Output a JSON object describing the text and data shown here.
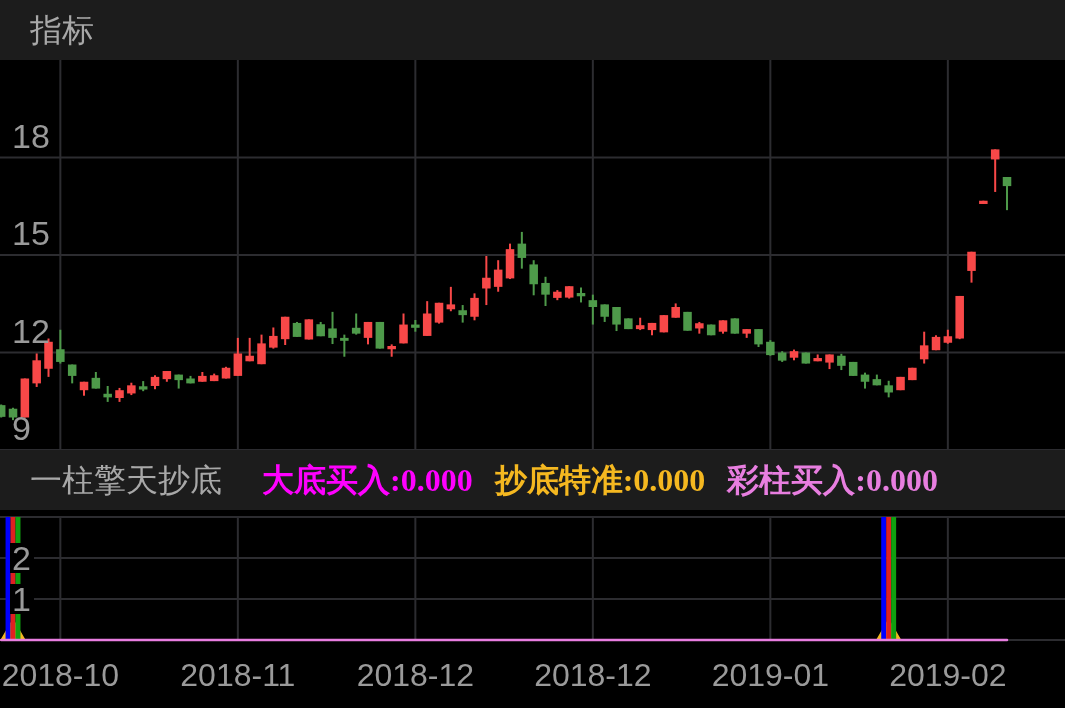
{
  "chart_data": [
    {
      "type": "candlestick",
      "title": "指标",
      "tick_labels": "y",
      "grid": true,
      "ylim": [
        9,
        21
      ],
      "yticks": [
        9,
        12,
        15,
        18
      ],
      "categories": [
        null,
        null,
        null,
        null,
        null,
        "2018-10",
        null,
        null,
        null,
        null,
        null,
        null,
        null,
        null,
        null,
        null,
        null,
        null,
        null,
        null,
        "2018-11",
        null,
        null,
        null,
        null,
        null,
        null,
        null,
        null,
        null,
        null,
        null,
        null,
        null,
        null,
        "2018-12",
        null,
        null,
        null,
        null,
        null,
        null,
        null,
        null,
        null,
        null,
        null,
        null,
        null,
        null,
        "2018-12",
        null,
        null,
        null,
        null,
        null,
        null,
        null,
        null,
        null,
        null,
        null,
        null,
        null,
        null,
        "2019-01",
        null,
        null,
        null,
        null,
        null,
        null,
        null,
        null,
        null,
        null,
        null,
        null,
        null,
        null,
        "2019-02",
        null,
        null,
        null,
        null,
        null
      ],
      "ohlc": [
        [
          10.38,
          10.4,
          10.0,
          10.02
        ],
        [
          10.27,
          10.3,
          9.92,
          10.0
        ],
        [
          10.0,
          11.2,
          10.0,
          11.2
        ],
        [
          11.05,
          11.97,
          10.94,
          11.76
        ],
        [
          11.5,
          12.43,
          11.25,
          12.33
        ],
        [
          12.1,
          12.7,
          11.66,
          11.71
        ],
        [
          11.63,
          11.63,
          11.05,
          11.28
        ],
        [
          10.84,
          11.1,
          10.67,
          11.1
        ],
        [
          11.22,
          11.4,
          10.89,
          10.89
        ],
        [
          10.73,
          10.97,
          10.48,
          10.62
        ],
        [
          10.6,
          10.91,
          10.48,
          10.84
        ],
        [
          10.74,
          11.07,
          10.69,
          10.99
        ],
        [
          10.96,
          11.12,
          10.81,
          10.86
        ],
        [
          10.97,
          11.3,
          10.87,
          11.25
        ],
        [
          11.18,
          11.43,
          11.1,
          11.43
        ],
        [
          11.32,
          11.32,
          10.89,
          11.15
        ],
        [
          11.2,
          11.28,
          11.05,
          11.05
        ],
        [
          11.1,
          11.4,
          11.1,
          11.28
        ],
        [
          11.12,
          11.35,
          11.12,
          11.3
        ],
        [
          11.2,
          11.56,
          11.2,
          11.53
        ],
        [
          11.28,
          12.45,
          11.28,
          11.97
        ],
        [
          11.73,
          12.45,
          11.73,
          11.9
        ],
        [
          11.64,
          12.55,
          11.64,
          12.28
        ],
        [
          12.15,
          12.77,
          12.12,
          12.51
        ],
        [
          12.41,
          13.1,
          12.23,
          13.1
        ],
        [
          12.91,
          12.94,
          12.48,
          12.48
        ],
        [
          12.4,
          13.02,
          12.4,
          13.02
        ],
        [
          12.87,
          12.94,
          12.5,
          12.5
        ],
        [
          12.74,
          13.25,
          12.26,
          12.45
        ],
        [
          12.45,
          12.55,
          11.87,
          12.36
        ],
        [
          12.76,
          13.2,
          12.55,
          12.58
        ],
        [
          12.45,
          12.94,
          12.25,
          12.94
        ],
        [
          12.94,
          12.94,
          12.12,
          12.12
        ],
        [
          12.1,
          12.25,
          11.87,
          12.2
        ],
        [
          12.28,
          13.2,
          12.28,
          12.86
        ],
        [
          12.86,
          13.0,
          12.64,
          12.76
        ],
        [
          12.51,
          13.58,
          12.51,
          13.2
        ],
        [
          12.92,
          13.53,
          12.89,
          13.53
        ],
        [
          13.33,
          14.02,
          13.27,
          13.48
        ],
        [
          13.3,
          13.46,
          12.92,
          13.15
        ],
        [
          13.1,
          13.82,
          12.99,
          13.68
        ],
        [
          13.97,
          14.97,
          13.46,
          14.3
        ],
        [
          14.02,
          14.84,
          13.87,
          14.55
        ],
        [
          14.28,
          15.35,
          14.26,
          15.18
        ],
        [
          15.35,
          15.71,
          14.58,
          14.91
        ],
        [
          14.71,
          14.84,
          13.76,
          14.1
        ],
        [
          14.14,
          14.33,
          13.43,
          13.78
        ],
        [
          13.68,
          13.92,
          13.61,
          13.87
        ],
        [
          13.69,
          14.04,
          13.66,
          14.04
        ],
        [
          13.83,
          14.0,
          13.54,
          13.73
        ],
        [
          13.61,
          13.78,
          12.86,
          13.4
        ],
        [
          13.48,
          13.48,
          12.94,
          13.1
        ],
        [
          13.4,
          13.4,
          12.66,
          12.86
        ],
        [
          13.05,
          13.05,
          12.72,
          12.72
        ],
        [
          12.72,
          13.07,
          12.69,
          12.84
        ],
        [
          12.69,
          12.91,
          12.53,
          12.91
        ],
        [
          12.62,
          13.15,
          12.62,
          13.15
        ],
        [
          13.07,
          13.51,
          13.07,
          13.4
        ],
        [
          13.25,
          13.25,
          12.67,
          12.67
        ],
        [
          12.74,
          12.94,
          12.58,
          12.9
        ],
        [
          12.86,
          12.86,
          12.53,
          12.53
        ],
        [
          12.64,
          12.99,
          12.58,
          12.99
        ],
        [
          13.05,
          13.05,
          12.58,
          12.58
        ],
        [
          12.58,
          12.72,
          12.45,
          12.72
        ],
        [
          12.72,
          12.72,
          12.17,
          12.25
        ],
        [
          12.33,
          12.38,
          11.9,
          11.92
        ],
        [
          12.0,
          12.04,
          11.71,
          11.75
        ],
        [
          11.84,
          12.09,
          11.76,
          12.04
        ],
        [
          12.0,
          12.0,
          11.66,
          11.66
        ],
        [
          11.73,
          11.94,
          11.73,
          11.83
        ],
        [
          11.69,
          11.94,
          11.49,
          11.94
        ],
        [
          11.9,
          11.96,
          11.46,
          11.59
        ],
        [
          11.71,
          11.71,
          11.28,
          11.28
        ],
        [
          11.32,
          11.38,
          10.89,
          11.1
        ],
        [
          11.18,
          11.32,
          10.99,
          10.99
        ],
        [
          10.99,
          11.13,
          10.62,
          10.77
        ],
        [
          10.84,
          11.25,
          10.84,
          11.25
        ],
        [
          11.15,
          11.53,
          11.15,
          11.53
        ],
        [
          11.79,
          12.64,
          11.66,
          12.22
        ],
        [
          12.07,
          12.53,
          12.07,
          12.48
        ],
        [
          12.3,
          12.7,
          12.27,
          12.5
        ],
        [
          12.43,
          13.74,
          12.41,
          13.74
        ],
        [
          14.51,
          15.1,
          14.15,
          15.1
        ],
        [
          16.57,
          16.67,
          16.57,
          16.67
        ],
        [
          17.94,
          18.25,
          16.94,
          18.25
        ],
        [
          17.4,
          17.4,
          16.38,
          17.12
        ]
      ],
      "colors": [
        "#4e9a4a",
        "#4e9a4a",
        "#f84848",
        "#f84848",
        "#f84848",
        "#4e9a4a",
        "#4e9a4a",
        "#f84848",
        "#4e9a4a",
        "#4e9a4a",
        "#f84848",
        "#f84848",
        "#4e9a4a",
        "#f84848",
        "#f84848",
        "#4e9a4a",
        "#4e9a4a",
        "#f84848",
        "#f84848",
        "#f84848",
        "#f84848",
        "#f84848",
        "#f84848",
        "#f84848",
        "#f84848",
        "#4e9a4a",
        "#f84848",
        "#4e9a4a",
        "#4e9a4a",
        "#4e9a4a",
        "#4e9a4a",
        "#f84848",
        "#4e9a4a",
        "#f84848",
        "#f84848",
        "#4e9a4a",
        "#f84848",
        "#f84848",
        "#f84848",
        "#4e9a4a",
        "#f84848",
        "#f84848",
        "#f84848",
        "#f84848",
        "#4e9a4a",
        "#4e9a4a",
        "#4e9a4a",
        "#f84848",
        "#f84848",
        "#4e9a4a",
        "#4e9a4a",
        "#4e9a4a",
        "#4e9a4a",
        "#4e9a4a",
        "#f84848",
        "#f84848",
        "#f84848",
        "#f84848",
        "#4e9a4a",
        "#f84848",
        "#4e9a4a",
        "#f84848",
        "#4e9a4a",
        "#f84848",
        "#4e9a4a",
        "#4e9a4a",
        "#4e9a4a",
        "#f84848",
        "#4e9a4a",
        "#f84848",
        "#f84848",
        "#4e9a4a",
        "#4e9a4a",
        "#4e9a4a",
        "#4e9a4a",
        "#4e9a4a",
        "#f84848",
        "#f84848",
        "#f84848",
        "#f84848",
        "#f84848",
        "#f84848",
        "#f84848",
        "#f84848",
        "#f84848",
        "#4e9a4a"
      ]
    },
    {
      "type": "bar",
      "title": "一柱擎天抄底",
      "grid": true,
      "ylim": [
        0,
        3
      ],
      "yticks": [
        {
          "value": 0,
          "label": null
        },
        1,
        2,
        {
          "value": 3,
          "label": null
        }
      ],
      "categories": [
        null,
        null,
        null,
        null,
        null,
        "2018-10",
        null,
        null,
        null,
        null,
        null,
        null,
        null,
        null,
        null,
        null,
        null,
        null,
        null,
        null,
        "2018-11",
        null,
        null,
        null,
        null,
        null,
        null,
        null,
        null,
        null,
        null,
        null,
        null,
        null,
        null,
        "2018-12",
        null,
        null,
        null,
        null,
        null,
        null,
        null,
        null,
        null,
        null,
        null,
        null,
        null,
        null,
        "2018-12",
        null,
        null,
        null,
        null,
        null,
        null,
        null,
        null,
        null,
        null,
        null,
        null,
        null,
        null,
        "2019-01",
        null,
        null,
        null,
        null,
        null,
        null,
        null,
        null,
        null,
        null,
        null,
        null,
        null,
        null,
        "2019-02",
        null,
        null,
        null,
        null,
        null
      ],
      "series": [
        {
          "name": "大底买入:0.000",
          "color": "#ff00ff",
          "type": "line",
          "values": [
            null,
            null,
            null,
            null,
            null,
            null,
            null,
            null,
            null,
            null,
            null,
            null,
            null,
            null,
            null,
            null,
            null,
            null,
            null,
            null,
            null,
            null,
            null,
            null,
            null,
            null,
            null,
            null,
            null,
            null,
            null,
            null,
            null,
            null,
            null,
            null,
            null,
            null,
            null,
            null,
            null,
            null,
            null,
            null,
            null,
            null,
            null,
            null,
            null,
            null,
            null,
            null,
            null,
            null,
            null,
            null,
            null,
            null,
            null,
            null,
            null,
            null,
            null,
            null,
            null,
            null,
            null,
            null,
            null,
            null,
            null,
            null,
            null,
            null,
            null,
            null,
            null,
            null,
            null,
            null,
            null,
            null,
            null,
            null,
            null,
            null
          ]
        },
        {
          "name": "抄底特准:0.000",
          "color": "#f5b820",
          "type": "area",
          "values": [
            0,
            0.5,
            0,
            null,
            null,
            null,
            null,
            null,
            null,
            null,
            null,
            null,
            null,
            null,
            null,
            null,
            null,
            null,
            null,
            null,
            null,
            null,
            null,
            null,
            null,
            null,
            null,
            null,
            null,
            null,
            null,
            null,
            null,
            null,
            null,
            null,
            null,
            null,
            null,
            null,
            null,
            null,
            null,
            null,
            null,
            null,
            null,
            null,
            null,
            null,
            null,
            null,
            null,
            null,
            null,
            null,
            null,
            null,
            null,
            null,
            null,
            null,
            null,
            null,
            null,
            null,
            null,
            null,
            null,
            null,
            null,
            null,
            null,
            null,
            0,
            0.5,
            0,
            null,
            null,
            null,
            null,
            null,
            null,
            null,
            null,
            null
          ]
        },
        {
          "color": "#0000ff",
          "type": "bar",
          "values": [
            null,
            3,
            null,
            null,
            null,
            null,
            null,
            null,
            null,
            null,
            null,
            null,
            null,
            null,
            null,
            null,
            null,
            null,
            null,
            null,
            null,
            null,
            null,
            null,
            null,
            null,
            null,
            null,
            null,
            null,
            null,
            null,
            null,
            null,
            null,
            null,
            null,
            null,
            null,
            null,
            null,
            null,
            null,
            null,
            null,
            null,
            null,
            null,
            null,
            null,
            null,
            null,
            null,
            null,
            null,
            null,
            null,
            null,
            null,
            null,
            null,
            null,
            null,
            null,
            null,
            null,
            null,
            null,
            null,
            null,
            null,
            null,
            null,
            null,
            null,
            3,
            null,
            null,
            null,
            null,
            null,
            null,
            null,
            null,
            null,
            null
          ]
        },
        {
          "color": "#e02020",
          "type": "bar",
          "values": [
            null,
            3,
            null,
            null,
            null,
            null,
            null,
            null,
            null,
            null,
            null,
            null,
            null,
            null,
            null,
            null,
            null,
            null,
            null,
            null,
            null,
            null,
            null,
            null,
            null,
            null,
            null,
            null,
            null,
            null,
            null,
            null,
            null,
            null,
            null,
            null,
            null,
            null,
            null,
            null,
            null,
            null,
            null,
            null,
            null,
            null,
            null,
            null,
            null,
            null,
            null,
            null,
            null,
            null,
            null,
            null,
            null,
            null,
            null,
            null,
            null,
            null,
            null,
            null,
            null,
            null,
            null,
            null,
            null,
            null,
            null,
            null,
            null,
            null,
            null,
            3,
            null,
            null,
            null,
            null,
            null,
            null,
            null,
            null,
            null,
            null
          ]
        },
        {
          "color": "#10a010",
          "type": "bar",
          "values": [
            null,
            3,
            null,
            null,
            null,
            null,
            null,
            null,
            null,
            null,
            null,
            null,
            null,
            null,
            null,
            null,
            null,
            null,
            null,
            null,
            null,
            null,
            null,
            null,
            null,
            null,
            null,
            null,
            null,
            null,
            null,
            null,
            null,
            null,
            null,
            null,
            null,
            null,
            null,
            null,
            null,
            null,
            null,
            null,
            null,
            null,
            null,
            null,
            null,
            null,
            null,
            null,
            null,
            null,
            null,
            null,
            null,
            null,
            null,
            null,
            null,
            null,
            null,
            null,
            null,
            null,
            null,
            null,
            null,
            null,
            null,
            null,
            null,
            null,
            null,
            3,
            null,
            null,
            null,
            null,
            null,
            null,
            null,
            null,
            null,
            null
          ]
        },
        {
          "name": "彩柱买入:0.000",
          "color": "#e87ee0",
          "type": "line",
          "values": [
            0,
            0,
            0,
            0,
            0,
            0,
            0,
            0,
            0,
            0,
            0,
            0,
            0,
            0,
            0,
            0,
            0,
            0,
            0,
            0,
            0,
            0,
            0,
            0,
            0,
            0,
            0,
            0,
            0,
            0,
            0,
            0,
            0,
            0,
            0,
            0,
            0,
            0,
            0,
            0,
            0,
            0,
            0,
            0,
            0,
            0,
            0,
            0,
            0,
            0,
            0,
            0,
            0,
            0,
            0,
            0,
            0,
            0,
            0,
            0,
            0,
            0,
            0,
            0,
            0,
            0,
            0,
            0,
            0,
            0,
            0,
            0,
            0,
            0,
            0,
            0,
            0,
            0,
            0,
            0,
            0,
            0,
            0,
            0,
            0,
            0
          ]
        }
      ]
    }
  ]
}
